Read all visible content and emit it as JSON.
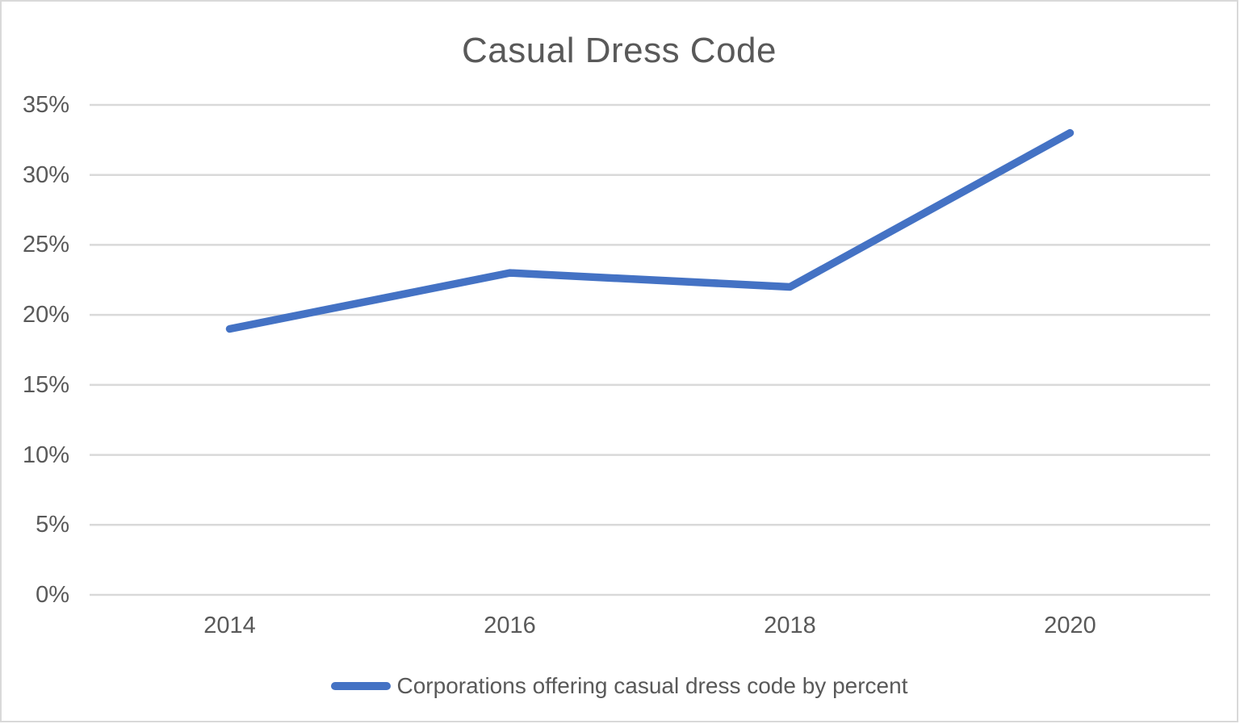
{
  "window": {
    "background": "#FFFFFF",
    "border_color": "#D9D9D9"
  },
  "chart_data": {
    "type": "line",
    "title": "Casual Dress Code",
    "categories": [
      "2014",
      "2016",
      "2018",
      "2020"
    ],
    "series": [
      {
        "name": "Corporations offering casual dress code by percent",
        "values": [
          19,
          23,
          22,
          33
        ],
        "color": "#4472C4"
      }
    ],
    "xlabel": "",
    "ylabel": "",
    "ylim": [
      0,
      35
    ],
    "ytick_step": 5,
    "ytick_labels": [
      "0%",
      "5%",
      "10%",
      "15%",
      "20%",
      "25%",
      "30%",
      "35%"
    ],
    "grid": "horizontal",
    "legend_position": "bottom",
    "colors": {
      "line": "#4472C4",
      "text": "#595959",
      "gridline": "#D9D9D9"
    }
  }
}
